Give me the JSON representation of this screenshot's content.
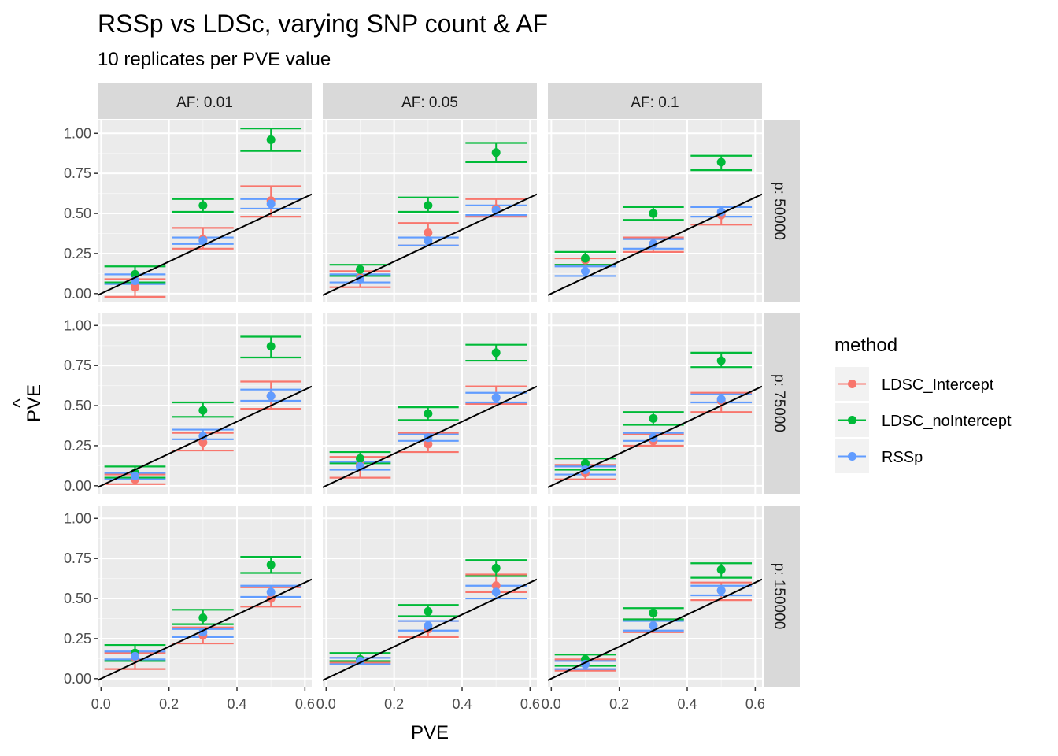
{
  "title": "RSSp vs LDSc, varying SNP count & AF",
  "subtitle": "10 replicates per PVE value",
  "chart_data": {
    "type": "scatter",
    "xlabel": "PVE",
    "ylabel": "PVE",
    "ylabel_hat": "^",
    "xlim": [
      -0.01,
      0.62
    ],
    "ylim": [
      -0.05,
      1.08
    ],
    "x_ticks": [
      0.0,
      0.2,
      0.4,
      0.6
    ],
    "x_tick_labels": [
      "0.0",
      "0.2",
      "0.4",
      "0.6"
    ],
    "y_ticks": [
      0.0,
      0.25,
      0.5,
      0.75,
      1.0
    ],
    "y_tick_labels": [
      "0.00",
      "0.25",
      "0.50",
      "0.75",
      "1.00"
    ],
    "reference_line": {
      "intercept": 0,
      "slope": 1,
      "color": "#000000"
    },
    "facet_cols": [
      "AF: 0.01",
      "AF: 0.05",
      "AF: 0.1"
    ],
    "facet_rows": [
      "p: 50000",
      "p: 75000",
      "p: 150000"
    ],
    "legend": {
      "title": "method",
      "position": "right",
      "items": [
        {
          "label": "LDSC_Intercept",
          "color": "#F8766D"
        },
        {
          "label": "LDSC_noIntercept",
          "color": "#00BA38"
        },
        {
          "label": "RSSp",
          "color": "#619CFF"
        }
      ]
    },
    "methods": [
      "LDSC_Intercept",
      "LDSC_noIntercept",
      "RSSp"
    ],
    "x": [
      0.1,
      0.3,
      0.5
    ],
    "panels": [
      {
        "row": 0,
        "col": 0,
        "series": [
          {
            "method": "LDSC_Intercept",
            "y": [
              0.04,
              0.34,
              0.58
            ],
            "lo": [
              -0.02,
              0.28,
              0.48
            ],
            "hi": [
              0.09,
              0.41,
              0.67
            ]
          },
          {
            "method": "LDSC_noIntercept",
            "y": [
              0.12,
              0.55,
              0.96
            ],
            "lo": [
              0.07,
              0.51,
              0.89
            ],
            "hi": [
              0.17,
              0.59,
              1.03
            ]
          },
          {
            "method": "RSSp",
            "y": [
              0.08,
              0.33,
              0.56
            ],
            "lo": [
              0.06,
              0.31,
              0.53
            ],
            "hi": [
              0.12,
              0.35,
              0.59
            ]
          }
        ]
      },
      {
        "row": 0,
        "col": 1,
        "series": [
          {
            "method": "LDSC_Intercept",
            "y": [
              0.1,
              0.38,
              0.53
            ],
            "lo": [
              0.04,
              0.3,
              0.48
            ],
            "hi": [
              0.14,
              0.44,
              0.59
            ]
          },
          {
            "method": "LDSC_noIntercept",
            "y": [
              0.15,
              0.55,
              0.88
            ],
            "lo": [
              0.11,
              0.51,
              0.82
            ],
            "hi": [
              0.18,
              0.6,
              0.94
            ]
          },
          {
            "method": "RSSp",
            "y": [
              0.09,
              0.33,
              0.52
            ],
            "lo": [
              0.07,
              0.3,
              0.49
            ],
            "hi": [
              0.12,
              0.35,
              0.55
            ]
          }
        ]
      },
      {
        "row": 0,
        "col": 2,
        "series": [
          {
            "method": "LDSC_Intercept",
            "y": [
              0.21,
              0.31,
              0.49
            ],
            "lo": [
              0.18,
              0.26,
              0.43
            ],
            "hi": [
              0.22,
              0.35,
              0.54
            ]
          },
          {
            "method": "LDSC_noIntercept",
            "y": [
              0.22,
              0.5,
              0.82
            ],
            "lo": [
              0.18,
              0.46,
              0.77
            ],
            "hi": [
              0.26,
              0.54,
              0.86
            ]
          },
          {
            "method": "RSSp",
            "y": [
              0.14,
              0.31,
              0.51
            ],
            "lo": [
              0.11,
              0.28,
              0.48
            ],
            "hi": [
              0.17,
              0.34,
              0.54
            ]
          }
        ]
      },
      {
        "row": 1,
        "col": 0,
        "series": [
          {
            "method": "LDSC_Intercept",
            "y": [
              0.04,
              0.27,
              0.56
            ],
            "lo": [
              0.01,
              0.22,
              0.48
            ],
            "hi": [
              0.07,
              0.33,
              0.65
            ]
          },
          {
            "method": "LDSC_noIntercept",
            "y": [
              0.08,
              0.47,
              0.87
            ],
            "lo": [
              0.05,
              0.43,
              0.8
            ],
            "hi": [
              0.12,
              0.52,
              0.93
            ]
          },
          {
            "method": "RSSp",
            "y": [
              0.06,
              0.31,
              0.56
            ],
            "lo": [
              0.04,
              0.29,
              0.53
            ],
            "hi": [
              0.08,
              0.35,
              0.6
            ]
          }
        ]
      },
      {
        "row": 1,
        "col": 1,
        "series": [
          {
            "method": "LDSC_Intercept",
            "y": [
              0.13,
              0.26,
              0.55
            ],
            "lo": [
              0.05,
              0.21,
              0.51
            ],
            "hi": [
              0.18,
              0.33,
              0.62
            ]
          },
          {
            "method": "LDSC_noIntercept",
            "y": [
              0.17,
              0.45,
              0.83
            ],
            "lo": [
              0.14,
              0.41,
              0.78
            ],
            "hi": [
              0.21,
              0.49,
              0.88
            ]
          },
          {
            "method": "RSSp",
            "y": [
              0.12,
              0.3,
              0.55
            ],
            "lo": [
              0.1,
              0.28,
              0.52
            ],
            "hi": [
              0.15,
              0.32,
              0.58
            ]
          }
        ]
      },
      {
        "row": 1,
        "col": 2,
        "series": [
          {
            "method": "LDSC_Intercept",
            "y": [
              0.08,
              0.28,
              0.53
            ],
            "lo": [
              0.04,
              0.25,
              0.46
            ],
            "hi": [
              0.13,
              0.32,
              0.58
            ]
          },
          {
            "method": "LDSC_noIntercept",
            "y": [
              0.14,
              0.42,
              0.78
            ],
            "lo": [
              0.1,
              0.38,
              0.74
            ],
            "hi": [
              0.17,
              0.46,
              0.83
            ]
          },
          {
            "method": "RSSp",
            "y": [
              0.1,
              0.3,
              0.54
            ],
            "lo": [
              0.07,
              0.28,
              0.52
            ],
            "hi": [
              0.12,
              0.33,
              0.57
            ]
          }
        ]
      },
      {
        "row": 2,
        "col": 0,
        "series": [
          {
            "method": "LDSC_Intercept",
            "y": [
              0.13,
              0.27,
              0.5
            ],
            "lo": [
              0.06,
              0.22,
              0.45
            ],
            "hi": [
              0.16,
              0.32,
              0.57
            ]
          },
          {
            "method": "LDSC_noIntercept",
            "y": [
              0.16,
              0.38,
              0.71
            ],
            "lo": [
              0.11,
              0.34,
              0.66
            ],
            "hi": [
              0.21,
              0.43,
              0.76
            ]
          },
          {
            "method": "RSSp",
            "y": [
              0.14,
              0.29,
              0.54
            ],
            "lo": [
              0.12,
              0.26,
              0.51
            ],
            "hi": [
              0.17,
              0.31,
              0.58
            ]
          }
        ]
      },
      {
        "row": 2,
        "col": 1,
        "series": [
          {
            "method": "LDSC_Intercept",
            "y": [
              0.12,
              0.31,
              0.58
            ],
            "lo": [
              0.1,
              0.26,
              0.54
            ],
            "hi": [
              0.13,
              0.36,
              0.65
            ]
          },
          {
            "method": "LDSC_noIntercept",
            "y": [
              0.12,
              0.42,
              0.69
            ],
            "lo": [
              0.11,
              0.39,
              0.64
            ],
            "hi": [
              0.16,
              0.46,
              0.74
            ]
          },
          {
            "method": "RSSp",
            "y": [
              0.11,
              0.33,
              0.54
            ],
            "lo": [
              0.09,
              0.3,
              0.5
            ],
            "hi": [
              0.13,
              0.36,
              0.58
            ]
          }
        ]
      },
      {
        "row": 2,
        "col": 2,
        "series": [
          {
            "method": "LDSC_Intercept",
            "y": [
              0.09,
              0.33,
              0.55
            ],
            "lo": [
              0.05,
              0.29,
              0.49
            ],
            "hi": [
              0.12,
              0.37,
              0.6
            ]
          },
          {
            "method": "LDSC_noIntercept",
            "y": [
              0.12,
              0.41,
              0.68
            ],
            "lo": [
              0.08,
              0.37,
              0.63
            ],
            "hi": [
              0.15,
              0.44,
              0.72
            ]
          },
          {
            "method": "RSSp",
            "y": [
              0.09,
              0.33,
              0.55
            ],
            "lo": [
              0.06,
              0.3,
              0.52
            ],
            "hi": [
              0.11,
              0.36,
              0.58
            ]
          }
        ]
      }
    ]
  }
}
